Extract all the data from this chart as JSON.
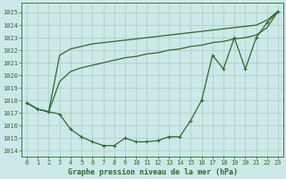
{
  "title": "Graphe pression niveau de la mer (hPa)",
  "x_labels": [
    "0",
    "1",
    "2",
    "3",
    "4",
    "5",
    "6",
    "7",
    "8",
    "9",
    "10",
    "11",
    "12",
    "13",
    "14",
    "15",
    "16",
    "17",
    "18",
    "19",
    "20",
    "21",
    "22",
    "23"
  ],
  "line_main": [
    1017.8,
    1017.3,
    1017.1,
    1016.9,
    1015.7,
    1015.1,
    1014.7,
    1014.4,
    1014.4,
    1015.0,
    1014.7,
    1014.7,
    1014.8,
    1015.1,
    1015.1,
    1016.4,
    1018.0,
    1021.6,
    1020.5,
    1023.0,
    1020.5,
    1023.0,
    1024.2,
    1025.1
  ],
  "line_upper1": [
    1017.8,
    1017.3,
    1017.1,
    1021.6,
    1022.1,
    1022.3,
    1022.5,
    1022.6,
    1022.7,
    1022.8,
    1022.9,
    1023.0,
    1023.1,
    1023.2,
    1023.3,
    1023.4,
    1023.5,
    1023.6,
    1023.7,
    1023.8,
    1023.9,
    1024.0,
    1024.4,
    1025.1
  ],
  "line_upper2": [
    1017.8,
    1017.3,
    1017.1,
    1019.5,
    1020.3,
    1020.6,
    1020.8,
    1021.0,
    1021.2,
    1021.4,
    1021.5,
    1021.7,
    1021.8,
    1022.0,
    1022.1,
    1022.3,
    1022.4,
    1022.6,
    1022.7,
    1022.9,
    1023.0,
    1023.2,
    1023.8,
    1025.1
  ],
  "line_color": "#2d6a2d",
  "bg_color": "#cce8e8",
  "grid_color": "#b0c8c8",
  "ylim": [
    1013.5,
    1025.8
  ],
  "yticks": [
    1014,
    1015,
    1016,
    1017,
    1018,
    1019,
    1020,
    1021,
    1022,
    1023,
    1024,
    1025
  ],
  "marker": "+",
  "marker_size": 3.5,
  "linewidth": 0.9,
  "title_fontsize": 6.0,
  "tick_fontsize": 5.0
}
